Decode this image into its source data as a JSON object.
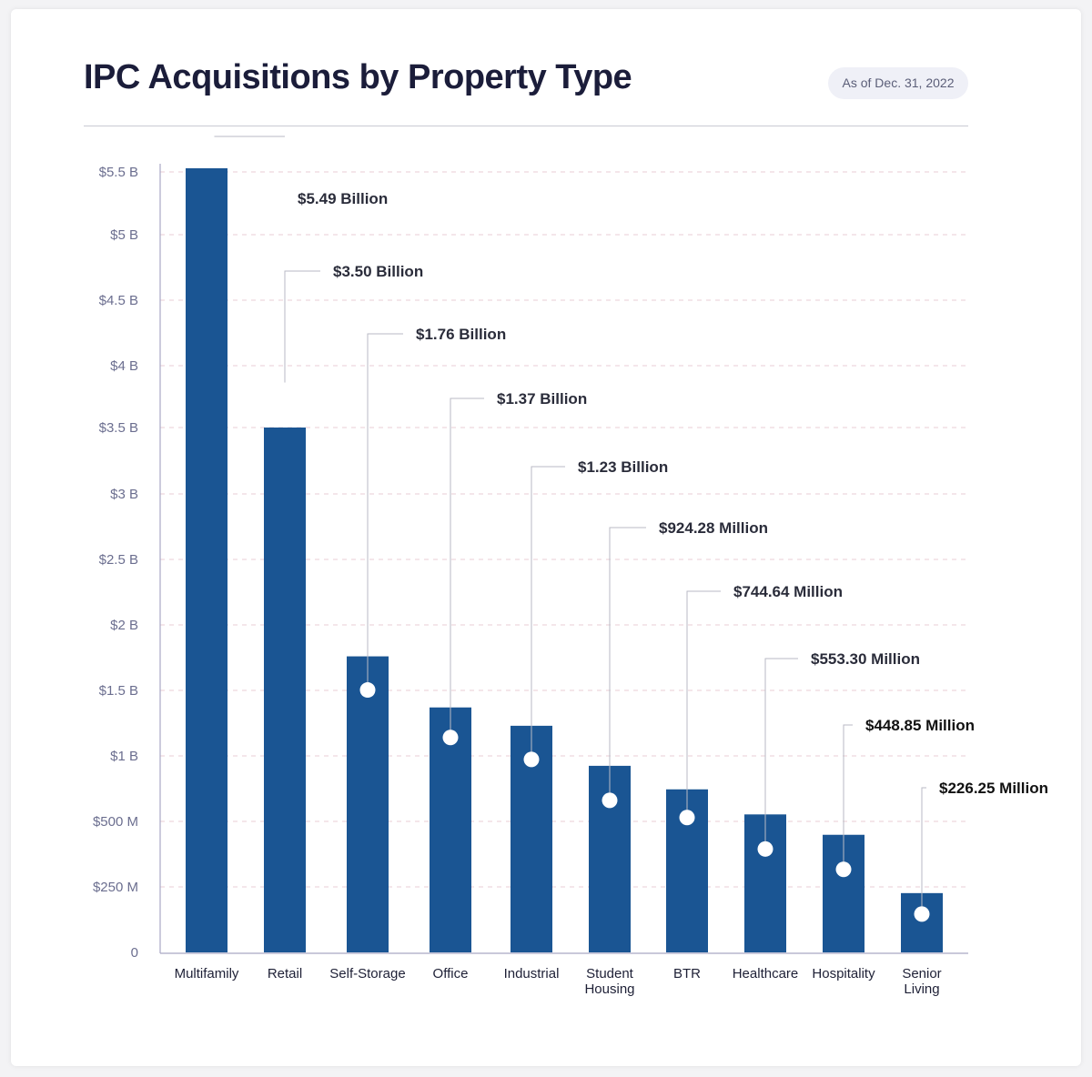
{
  "header": {
    "title": "IPC Acquisitions by Property Type",
    "as_of": "As of Dec. 31, 2022"
  },
  "colors": {
    "bar": "#1a5593",
    "marker": "#ffffff",
    "leader": "#b9bac4",
    "grid": "#e8cdd6",
    "axis": "#a9a8c4",
    "tick_text": "#6b6e8f",
    "category_text": "#1e2036",
    "label_text": "#2a2c3a"
  },
  "chart_data": {
    "type": "bar",
    "title": "IPC Acquisitions by Property Type",
    "xlabel": "",
    "ylabel": "",
    "categories": [
      "Multifamily",
      "Retail",
      "Self-Storage",
      "Office",
      "Industrial",
      "Student Housing",
      "BTR",
      "Healthcare",
      "Hospitality",
      "Senior Living"
    ],
    "category_lines": [
      [
        "Multifamily"
      ],
      [
        "Retail"
      ],
      [
        "Self-Storage"
      ],
      [
        "Office"
      ],
      [
        "Industrial"
      ],
      [
        "Student",
        "Housing"
      ],
      [
        "BTR"
      ],
      [
        "Healthcare"
      ],
      [
        "Hospitality"
      ],
      [
        "Senior",
        "Living"
      ]
    ],
    "values": [
      5.49,
      3.5,
      1.76,
      1.37,
      1.23,
      0.92428,
      0.74464,
      0.5533,
      0.44885,
      0.22625
    ],
    "data_labels": [
      "$5.49 Billion",
      "$3.50 Billion",
      "$1.76 Billion",
      "$1.37 Billion",
      "$1.23 Billion",
      "$924.28 Million",
      "$744.64 Million",
      "$553.30 Million",
      "$448.85 Million",
      "$226.25 Million"
    ],
    "yticks": [
      {
        "label": "0",
        "value": 0
      },
      {
        "label": "$250 M",
        "value": 0.25
      },
      {
        "label": "$500 M",
        "value": 0.5
      },
      {
        "label": "$1 B",
        "value": 1
      },
      {
        "label": "$1.5 B",
        "value": 1.5
      },
      {
        "label": "$2 B",
        "value": 2
      },
      {
        "label": "$2.5 B",
        "value": 2.5
      },
      {
        "label": "$3 B",
        "value": 3
      },
      {
        "label": "$3.5 B",
        "value": 3.5
      },
      {
        "label": "$4 B",
        "value": 4
      },
      {
        "label": "$4.5 B",
        "value": 4.5
      },
      {
        "label": "$5 B",
        "value": 5
      },
      {
        "label": "$5.5 B",
        "value": 5.5
      }
    ],
    "ylim": [
      0,
      5.5
    ],
    "grid": true,
    "legend": "none"
  }
}
